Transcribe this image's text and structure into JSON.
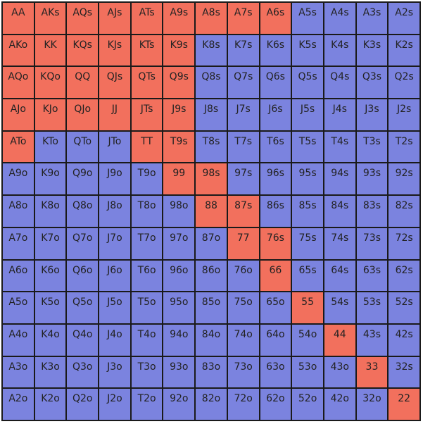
{
  "colors": {
    "raise": "#f2705d",
    "fold": "#7b83df"
  },
  "hand_grid": {
    "ranks": [
      "A",
      "K",
      "Q",
      "J",
      "T",
      "9",
      "8",
      "7",
      "6",
      "5",
      "4",
      "3",
      "2"
    ],
    "rows": [
      [
        "AA",
        "AKs",
        "AQs",
        "AJs",
        "ATs",
        "A9s",
        "A8s",
        "A7s",
        "A6s",
        "A5s",
        "A4s",
        "A3s",
        "A2s"
      ],
      [
        "AKo",
        "KK",
        "KQs",
        "KJs",
        "KTs",
        "K9s",
        "K8s",
        "K7s",
        "K6s",
        "K5s",
        "K4s",
        "K3s",
        "K2s"
      ],
      [
        "AQo",
        "KQo",
        "QQ",
        "QJs",
        "QTs",
        "Q9s",
        "Q8s",
        "Q7s",
        "Q6s",
        "Q5s",
        "Q4s",
        "Q3s",
        "Q2s"
      ],
      [
        "AJo",
        "KJo",
        "QJo",
        "JJ",
        "JTs",
        "J9s",
        "J8s",
        "J7s",
        "J6s",
        "J5s",
        "J4s",
        "J3s",
        "J2s"
      ],
      [
        "ATo",
        "KTo",
        "QTo",
        "JTo",
        "TT",
        "T9s",
        "T8s",
        "T7s",
        "T6s",
        "T5s",
        "T4s",
        "T3s",
        "T2s"
      ],
      [
        "A9o",
        "K9o",
        "Q9o",
        "J9o",
        "T9o",
        "99",
        "98s",
        "97s",
        "96s",
        "95s",
        "94s",
        "93s",
        "92s"
      ],
      [
        "A8o",
        "K8o",
        "Q8o",
        "J8o",
        "T8o",
        "98o",
        "88",
        "87s",
        "86s",
        "85s",
        "84s",
        "83s",
        "82s"
      ],
      [
        "A7o",
        "K7o",
        "Q7o",
        "J7o",
        "T7o",
        "97o",
        "87o",
        "77",
        "76s",
        "75s",
        "74s",
        "73s",
        "72s"
      ],
      [
        "A6o",
        "K6o",
        "Q6o",
        "J6o",
        "T6o",
        "96o",
        "86o",
        "76o",
        "66",
        "65s",
        "64s",
        "63s",
        "62s"
      ],
      [
        "A5o",
        "K5o",
        "Q5o",
        "J5o",
        "T5o",
        "95o",
        "85o",
        "75o",
        "65o",
        "55",
        "54s",
        "53s",
        "52s"
      ],
      [
        "A4o",
        "K4o",
        "Q4o",
        "J4o",
        "T4o",
        "94o",
        "84o",
        "74o",
        "64o",
        "54o",
        "44",
        "43s",
        "42s"
      ],
      [
        "A3o",
        "K3o",
        "Q3o",
        "J3o",
        "T3o",
        "93o",
        "83o",
        "73o",
        "63o",
        "53o",
        "43o",
        "33",
        "32s"
      ],
      [
        "A2o",
        "K2o",
        "Q2o",
        "J2o",
        "T2o",
        "92o",
        "82o",
        "72o",
        "62o",
        "52o",
        "42o",
        "32o",
        "22"
      ]
    ],
    "highlighted": [
      "AA",
      "AKs",
      "AQs",
      "AJs",
      "ATs",
      "A9s",
      "A8s",
      "A7s",
      "A6s",
      "AKo",
      "KK",
      "KQs",
      "KJs",
      "KTs",
      "K9s",
      "AQo",
      "KQo",
      "QQ",
      "QJs",
      "QTs",
      "Q9s",
      "AJo",
      "KJo",
      "QJo",
      "JJ",
      "JTs",
      "J9s",
      "ATo",
      "TT",
      "T9s",
      "99",
      "98s",
      "88",
      "87s",
      "77",
      "76s",
      "66",
      "55",
      "44",
      "33",
      "22"
    ]
  }
}
